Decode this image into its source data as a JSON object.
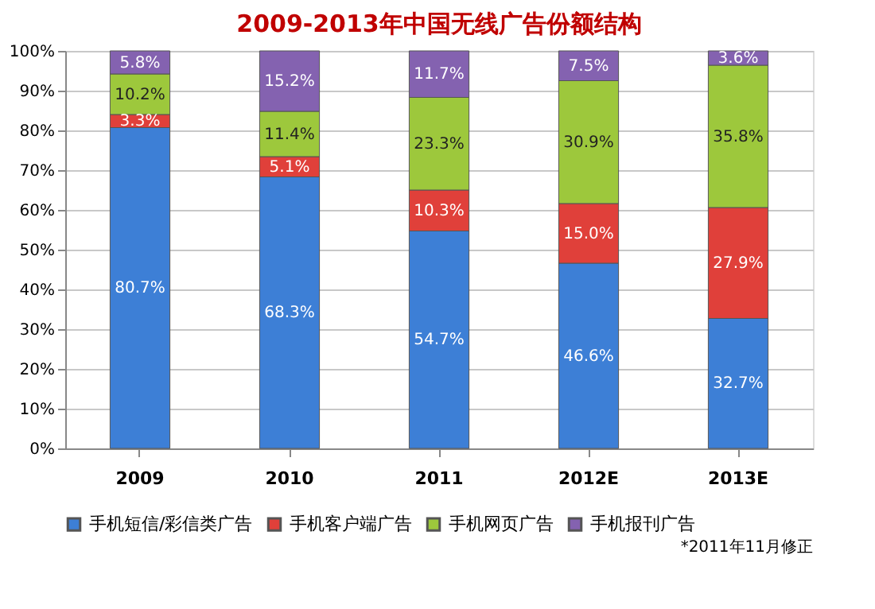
{
  "chart_data": {
    "type": "bar",
    "stacked": true,
    "title": "2009-2013年中国无线广告份额结构",
    "categories": [
      "2009",
      "2010",
      "2011",
      "2012E",
      "2013E"
    ],
    "series": [
      {
        "name": "手机短信/彩信类广告",
        "color": "#3d7fd6",
        "values": [
          80.7,
          68.3,
          54.7,
          46.6,
          32.7
        ],
        "value_labels": [
          "80.7%",
          "68.3%",
          "54.7%",
          "46.6%",
          "32.7%"
        ]
      },
      {
        "name": "手机客户端广告",
        "color": "#e0403a",
        "values": [
          3.3,
          5.1,
          10.3,
          15.0,
          27.9
        ],
        "value_labels": [
          "3.3%",
          "5.1%",
          "10.3%",
          "15.0%",
          "27.9%"
        ]
      },
      {
        "name": "手机网页广告",
        "color": "#9dc83c",
        "values": [
          10.2,
          11.4,
          23.3,
          30.9,
          35.8
        ],
        "value_labels": [
          "10.2%",
          "11.4%",
          "23.3%",
          "30.9%",
          "35.8%"
        ]
      },
      {
        "name": "手机报刊广告",
        "color": "#8462b0",
        "values": [
          5.8,
          15.2,
          11.7,
          7.5,
          3.6
        ],
        "value_labels": [
          "5.8%",
          "15.2%",
          "11.7%",
          "7.5%",
          "3.6%"
        ]
      }
    ],
    "ylim": [
      0,
      100
    ],
    "yticks": [
      {
        "value": 0,
        "label": "0%"
      },
      {
        "value": 10,
        "label": "10%"
      },
      {
        "value": 20,
        "label": "20%"
      },
      {
        "value": 30,
        "label": "30%"
      },
      {
        "value": 40,
        "label": "40%"
      },
      {
        "value": 50,
        "label": "50%"
      },
      {
        "value": 60,
        "label": "60%"
      },
      {
        "value": 70,
        "label": "70%"
      },
      {
        "value": 80,
        "label": "80%"
      },
      {
        "value": 90,
        "label": "90%"
      },
      {
        "value": 100,
        "label": "100%"
      }
    ],
    "grid": "y",
    "legend": "bottom",
    "annotations": [
      "*2011年11月修正"
    ]
  }
}
